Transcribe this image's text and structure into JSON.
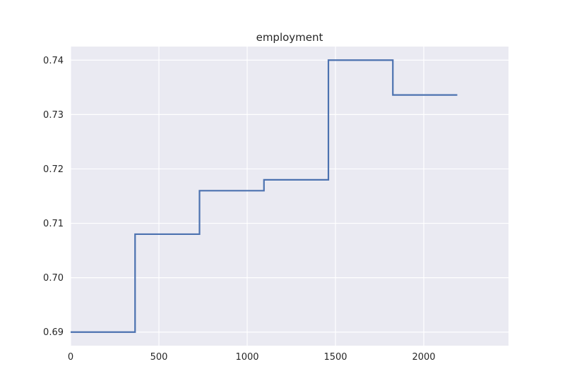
{
  "chart_data": {
    "type": "line",
    "step": "post",
    "title": "employment",
    "xlabel": "",
    "ylabel": "",
    "xlim": [
      0,
      2480
    ],
    "ylim": [
      0.6875,
      0.7425
    ],
    "xticks": [
      0,
      500,
      1000,
      1500,
      2000
    ],
    "xtick_labels": [
      "0",
      "500",
      "1000",
      "1500",
      "2000"
    ],
    "yticks": [
      0.69,
      0.7,
      0.71,
      0.72,
      0.73,
      0.74
    ],
    "ytick_labels": [
      "0.69",
      "0.70",
      "0.71",
      "0.72",
      "0.73",
      "0.74"
    ],
    "grid": true,
    "background": "#eaeaf2",
    "grid_color": "#ffffff",
    "series": [
      {
        "color": "#4c72b0",
        "x": [
          0,
          365,
          730,
          1095,
          1460,
          1825,
          2190
        ],
        "y": [
          0.69,
          0.708,
          0.716,
          0.718,
          0.74,
          0.7336,
          0.7336
        ]
      }
    ]
  }
}
